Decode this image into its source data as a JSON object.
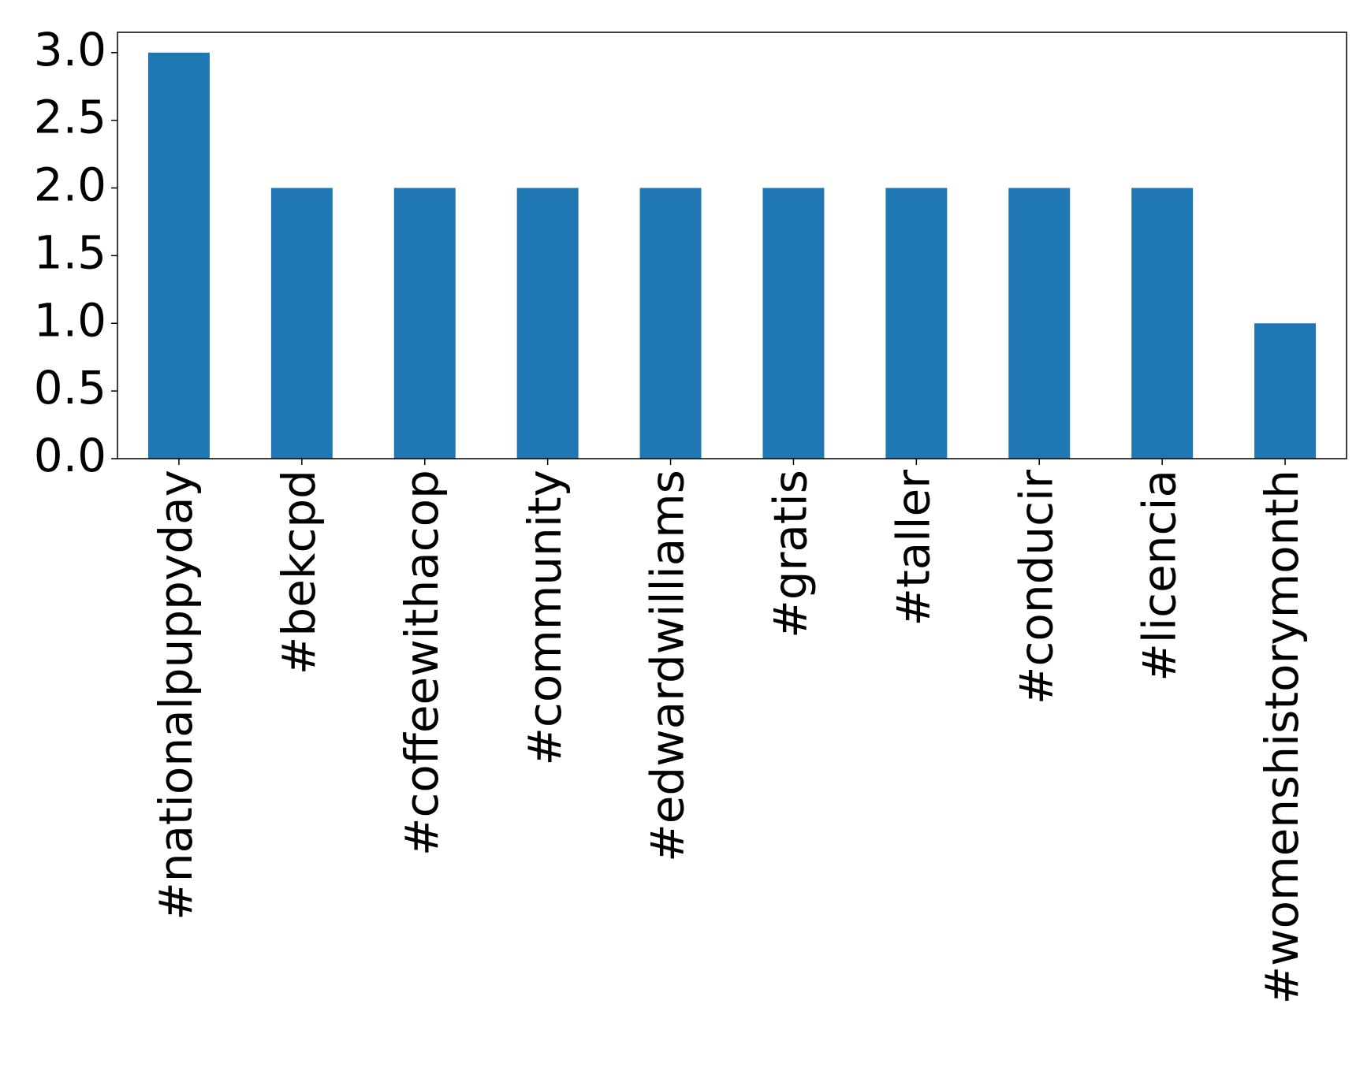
{
  "chart_data": {
    "type": "bar",
    "categories": [
      "#nationalpuppyday",
      "#bekcpd",
      "#coffeewithacop",
      "#community",
      "#edwardwilliams",
      "#gratis",
      "#taller",
      "#conducir",
      "#licencia",
      "#womenshistorymonth"
    ],
    "values": [
      3,
      2,
      2,
      2,
      2,
      2,
      2,
      2,
      2,
      1
    ],
    "color": "#1f77b4",
    "ylim": [
      0,
      3.15
    ],
    "yticks": [
      {
        "value": 0,
        "label": "0.0"
      },
      {
        "value": 0.5,
        "label": "0.5"
      },
      {
        "value": 1,
        "label": "1.0"
      },
      {
        "value": 1.5,
        "label": "1.5"
      },
      {
        "value": 2,
        "label": "2.0"
      },
      {
        "value": 2.5,
        "label": "2.5"
      },
      {
        "value": 3,
        "label": "3.0"
      }
    ],
    "grid": false
  }
}
